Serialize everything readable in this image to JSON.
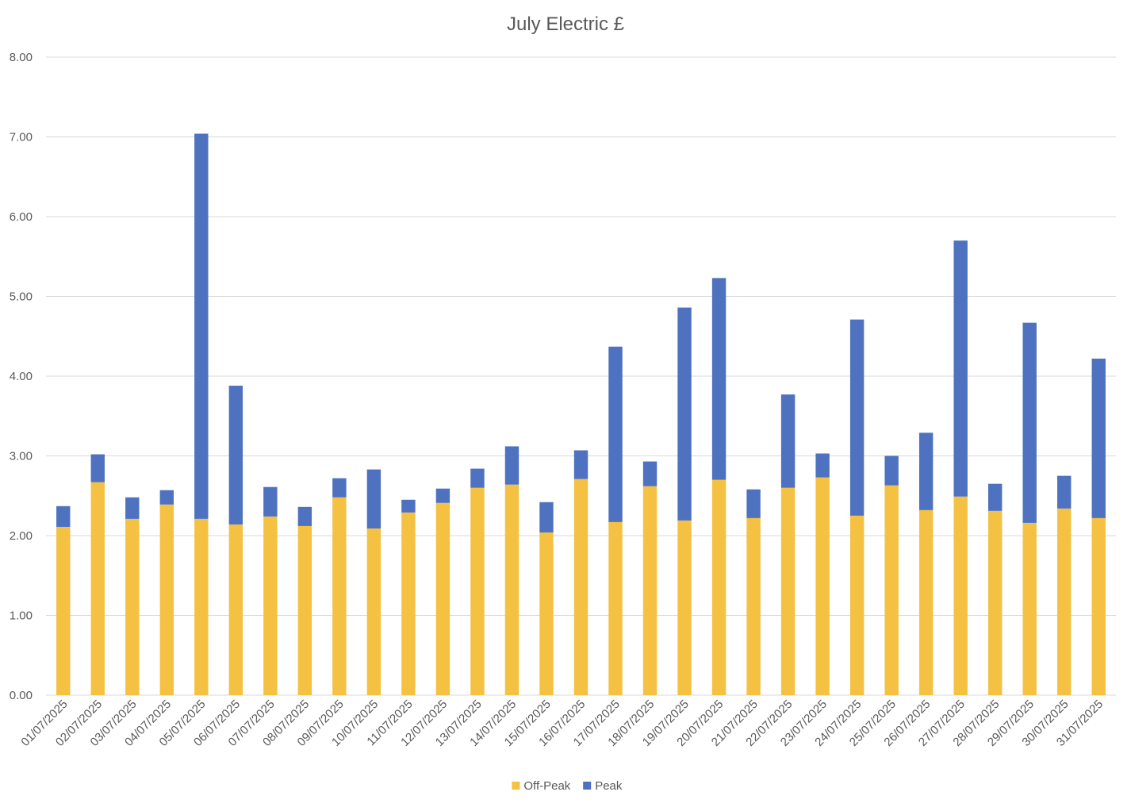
{
  "chart_data": {
    "type": "bar",
    "stacked": true,
    "title": "July Electric £",
    "xlabel": "",
    "ylabel": "",
    "ylim": [
      0,
      8
    ],
    "y_ticks": [
      "0.00",
      "1.00",
      "2.00",
      "3.00",
      "4.00",
      "5.00",
      "6.00",
      "7.00",
      "8.00"
    ],
    "grid": true,
    "legend_position": "bottom",
    "categories": [
      "01/07/2025",
      "02/07/2025",
      "03/07/2025",
      "04/07/2025",
      "05/07/2025",
      "06/07/2025",
      "07/07/2025",
      "08/07/2025",
      "09/07/2025",
      "10/07/2025",
      "11/07/2025",
      "12/07/2025",
      "13/07/2025",
      "14/07/2025",
      "15/07/2025",
      "16/07/2025",
      "17/07/2025",
      "18/07/2025",
      "19/07/2025",
      "20/07/2025",
      "21/07/2025",
      "22/07/2025",
      "23/07/2025",
      "24/07/2025",
      "25/07/2025",
      "26/07/2025",
      "27/07/2025",
      "28/07/2025",
      "29/07/2025",
      "30/07/2025",
      "31/07/2025"
    ],
    "series": [
      {
        "name": "Off-Peak",
        "color": "#f4c142",
        "values": [
          2.11,
          2.67,
          2.21,
          2.39,
          2.21,
          2.14,
          2.24,
          2.12,
          2.48,
          2.09,
          2.29,
          2.41,
          2.6,
          2.64,
          2.04,
          2.71,
          2.17,
          2.62,
          2.19,
          2.7,
          2.22,
          2.6,
          2.73,
          2.25,
          2.63,
          2.32,
          2.49,
          2.31,
          2.16,
          2.34,
          2.22
        ]
      },
      {
        "name": "Peak",
        "color": "#4e72bf",
        "values": [
          0.26,
          0.35,
          0.27,
          0.18,
          4.83,
          1.74,
          0.37,
          0.24,
          0.24,
          0.74,
          0.16,
          0.18,
          0.24,
          0.48,
          0.38,
          0.36,
          2.2,
          0.31,
          2.67,
          2.53,
          0.36,
          1.17,
          0.3,
          2.46,
          0.37,
          0.97,
          3.21,
          0.34,
          2.51,
          0.41,
          2.0
        ]
      }
    ]
  }
}
